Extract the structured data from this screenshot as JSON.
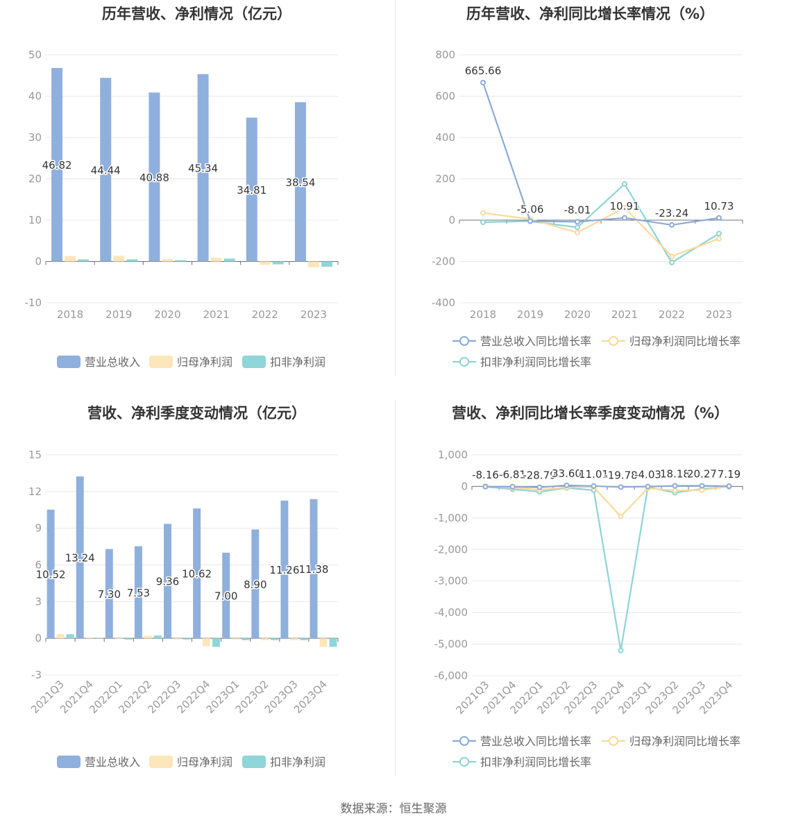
{
  "footer": {
    "source": "数据来源：恒生聚源"
  },
  "chart_data": [
    {
      "type": "bar",
      "title": "历年营收、净利情况（亿元）",
      "categories": [
        "2018",
        "2019",
        "2020",
        "2021",
        "2022",
        "2023"
      ],
      "ylim": [
        -10,
        50
      ],
      "yticks": [
        -10,
        0,
        10,
        20,
        30,
        40,
        50
      ],
      "series": [
        {
          "name": "营业总收入",
          "color": "#8fb0dd",
          "values": [
            46.82,
            44.44,
            40.88,
            45.34,
            34.81,
            38.54
          ],
          "labels": [
            "46.82",
            "44.44",
            "40.88",
            "45.34",
            "34.81",
            "38.54"
          ]
        },
        {
          "name": "归母净利润",
          "color": "#fde6b9",
          "values": [
            1.3,
            1.4,
            0.6,
            0.9,
            -0.8,
            -1.4
          ]
        },
        {
          "name": "扣非净利润",
          "color": "#8fd6d8",
          "values": [
            0.5,
            0.5,
            0.3,
            0.7,
            -0.7,
            -1.3
          ]
        }
      ],
      "legend": "bottom",
      "grid": true
    },
    {
      "type": "line",
      "title": "历年营收、净利同比增长率情况（%）",
      "categories": [
        "2018",
        "2019",
        "2020",
        "2021",
        "2022",
        "2023"
      ],
      "ylim": [
        -400,
        800
      ],
      "yticks": [
        -400,
        -200,
        0,
        200,
        400,
        600,
        800
      ],
      "series": [
        {
          "name": "营业总收入同比增长率",
          "color": "#8aaad8",
          "values": [
            665.66,
            -5.06,
            -8.01,
            10.91,
            -23.24,
            10.73
          ],
          "labels": [
            "665.66",
            "-5.06",
            "-8.01",
            "10.91",
            "-23.24",
            "10.73"
          ]
        },
        {
          "name": "归母净利润同比增长率",
          "color": "#fcd99a",
          "values": [
            35,
            5,
            -60,
            60,
            -175,
            -90
          ]
        },
        {
          "name": "扣非净利润同比增长率",
          "color": "#8dd3d6",
          "values": [
            -10,
            -5,
            -35,
            175,
            -205,
            -65
          ]
        }
      ],
      "legend": "bottom",
      "grid": true
    },
    {
      "type": "bar",
      "title": "营收、净利季度变动情况（亿元）",
      "categories": [
        "2021Q3",
        "2021Q4",
        "2022Q1",
        "2022Q2",
        "2022Q3",
        "2022Q4",
        "2023Q1",
        "2023Q2",
        "2023Q3",
        "2023Q4"
      ],
      "ylim": [
        -3,
        15
      ],
      "yticks": [
        -3,
        0,
        3,
        6,
        9,
        12,
        15
      ],
      "series": [
        {
          "name": "营业总收入",
          "color": "#8fb0dd",
          "values": [
            10.52,
            13.24,
            7.3,
            7.53,
            9.36,
            10.62,
            7.0,
            8.9,
            11.26,
            11.38
          ],
          "labels": [
            "10.52",
            "13.24",
            "7.30",
            "7.53",
            "9.36",
            "10.62",
            "7.00",
            "8.90",
            "11.26",
            "11.38"
          ]
        },
        {
          "name": "归母净利润",
          "color": "#fde6b9",
          "values": [
            0.35,
            0.08,
            -0.05,
            0.22,
            -0.1,
            -0.65,
            -0.1,
            -0.15,
            -0.15,
            -0.7
          ]
        },
        {
          "name": "扣非净利润",
          "color": "#8fd6d8",
          "values": [
            0.33,
            0.03,
            -0.1,
            0.23,
            -0.1,
            -0.7,
            -0.15,
            -0.15,
            -0.15,
            -0.7
          ]
        }
      ],
      "legend": "bottom",
      "grid": true
    },
    {
      "type": "line",
      "title": "营收、净利同比增长率季度变动情况（%）",
      "categories": [
        "2021Q3",
        "2021Q4",
        "2022Q1",
        "2022Q2",
        "2022Q3",
        "2022Q4",
        "2023Q1",
        "2023Q2",
        "2023Q3",
        "2023Q4"
      ],
      "ylim": [
        -6000,
        1000
      ],
      "yticks": [
        -6000,
        -5000,
        -4000,
        -3000,
        -2000,
        -1000,
        0,
        1000
      ],
      "ytick_labels": [
        "-6,000",
        "-5,000",
        "-4,000",
        "-3,000",
        "-2,000",
        "-1,000",
        "0",
        "1,000"
      ],
      "series": [
        {
          "name": "营业总收入同比增长率",
          "color": "#8aaad8",
          "values": [
            -8.16,
            -6.81,
            -28.79,
            33.6,
            11.01,
            -19.78,
            -4.03,
            18.18,
            20.27,
            7.19
          ],
          "labels": [
            "-8.16",
            "-6.81",
            "-28.79",
            "33.60",
            "11.01",
            "-19.78",
            "-4.03",
            "18.18",
            "20.27",
            "7.19"
          ]
        },
        {
          "name": "归母净利润同比增长率",
          "color": "#fcd99a",
          "values": [
            10,
            -40,
            -110,
            -30,
            -20,
            -950,
            -60,
            -130,
            -120,
            0
          ]
        },
        {
          "name": "扣非净利润同比增长率",
          "color": "#8dd3d6",
          "values": [
            -10,
            -90,
            -170,
            -50,
            -120,
            -5200,
            -20,
            -200,
            -80,
            -10
          ]
        }
      ],
      "legend": "bottom",
      "grid": true
    }
  ]
}
